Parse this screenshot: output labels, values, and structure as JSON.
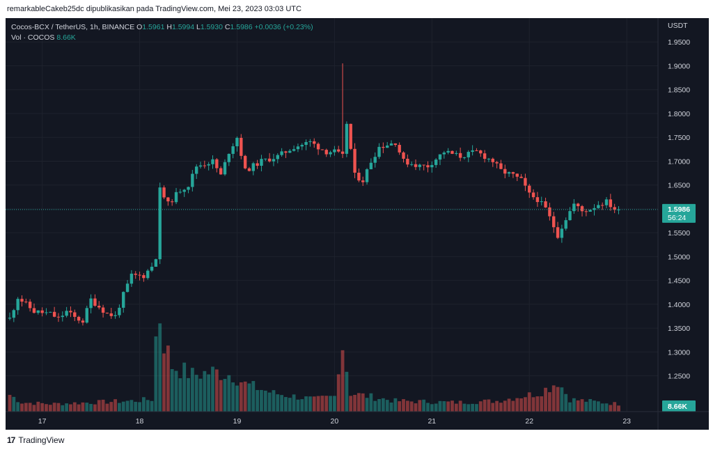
{
  "caption": "remarkableCakeb25dc dipublikasikan pada TradingView.com, Mei 23, 2023 03:03 UTC",
  "legend": {
    "symbol": "Cocos-BCX / TetherUS, 1h, BINANCE",
    "o_label": "O",
    "o_value": "1.5961",
    "h_label": "H",
    "h_value": "1.5994",
    "l_label": "L",
    "l_value": "1.5930",
    "c_label": "C",
    "c_value": "1.5986",
    "change": "+0.0036 (+0.23%)",
    "vol_label": "Vol · COCOS",
    "vol_value": "8.66K"
  },
  "footer": {
    "brand": "TradingView",
    "logo_glyph": "17"
  },
  "colors": {
    "up": "#26a69a",
    "down": "#ef5350",
    "background": "#131722",
    "text": "#d1d4dc",
    "price_line": "#26a69a"
  },
  "chart_data": {
    "type": "candlestick",
    "currency": "USDT",
    "ylim": [
      1.175,
      2.0
    ],
    "y_ticks": [
      "1.9500",
      "1.9000",
      "1.8500",
      "1.8000",
      "1.7500",
      "1.7000",
      "1.6500",
      "1.6000",
      "1.5500",
      "1.5000",
      "1.4500",
      "1.4000",
      "1.3500",
      "1.3000",
      "1.2500"
    ],
    "x_ticks": [
      {
        "label": "17",
        "hour": 8
      },
      {
        "label": "18",
        "hour": 32
      },
      {
        "label": "19",
        "hour": 56
      },
      {
        "label": "20",
        "hour": 80
      },
      {
        "label": "21",
        "hour": 104
      },
      {
        "label": "22",
        "hour": 128
      },
      {
        "label": "23",
        "hour": 152
      }
    ],
    "last_price": "1.5986",
    "countdown": "56:24",
    "last_volume": "8.66K",
    "price_anchors": [
      [
        0,
        1.37
      ],
      [
        2,
        1.415
      ],
      [
        6,
        1.385
      ],
      [
        10,
        1.38
      ],
      [
        12,
        1.37
      ],
      [
        14,
        1.385
      ],
      [
        16,
        1.372
      ],
      [
        18,
        1.365
      ],
      [
        20,
        1.41
      ],
      [
        22,
        1.395
      ],
      [
        24,
        1.38
      ],
      [
        26,
        1.375
      ],
      [
        28,
        1.42
      ],
      [
        30,
        1.46
      ],
      [
        33,
        1.46
      ],
      [
        35,
        1.48
      ],
      [
        36,
        1.5
      ],
      [
        37,
        1.64
      ],
      [
        39,
        1.61
      ],
      [
        42,
        1.64
      ],
      [
        44,
        1.65
      ],
      [
        46,
        1.69
      ],
      [
        50,
        1.7
      ],
      [
        52,
        1.67
      ],
      [
        54,
        1.72
      ],
      [
        56,
        1.75
      ],
      [
        58,
        1.68
      ],
      [
        62,
        1.7
      ],
      [
        66,
        1.71
      ],
      [
        70,
        1.73
      ],
      [
        74,
        1.74
      ],
      [
        78,
        1.72
      ],
      [
        80,
        1.72
      ],
      [
        82,
        1.71
      ],
      [
        83,
        1.78
      ],
      [
        85,
        1.67
      ],
      [
        87,
        1.66
      ],
      [
        89,
        1.7
      ],
      [
        91,
        1.73
      ],
      [
        95,
        1.74
      ],
      [
        97,
        1.7
      ],
      [
        101,
        1.69
      ],
      [
        103,
        1.69
      ],
      [
        107,
        1.72
      ],
      [
        111,
        1.71
      ],
      [
        115,
        1.72
      ],
      [
        119,
        1.7
      ],
      [
        121,
        1.68
      ],
      [
        124,
        1.67
      ],
      [
        126,
        1.66
      ],
      [
        128,
        1.63
      ],
      [
        130,
        1.62
      ],
      [
        132,
        1.6
      ],
      [
        135,
        1.545
      ],
      [
        137,
        1.58
      ],
      [
        139,
        1.61
      ],
      [
        141,
        1.595
      ],
      [
        143,
        1.6
      ],
      [
        145,
        1.61
      ],
      [
        147,
        1.615
      ],
      [
        149,
        1.6
      ],
      [
        150,
        1.5986
      ]
    ],
    "volume_anchors": [
      [
        0,
        0.55
      ],
      [
        3,
        0.3
      ],
      [
        10,
        0.25
      ],
      [
        20,
        0.3
      ],
      [
        30,
        0.35
      ],
      [
        35,
        0.4
      ],
      [
        36,
        2.4
      ],
      [
        37,
        3.15
      ],
      [
        38,
        2.3
      ],
      [
        40,
        1.5
      ],
      [
        45,
        1.2
      ],
      [
        50,
        1.3
      ],
      [
        55,
        1.2
      ],
      [
        58,
        0.9
      ],
      [
        65,
        0.6
      ],
      [
        75,
        0.4
      ],
      [
        80,
        0.5
      ],
      [
        81,
        1.6
      ],
      [
        82,
        2.2
      ],
      [
        84,
        0.6
      ],
      [
        95,
        0.35
      ],
      [
        110,
        0.3
      ],
      [
        120,
        0.35
      ],
      [
        130,
        0.6
      ],
      [
        133,
        0.8
      ],
      [
        135,
        1.0
      ],
      [
        138,
        0.4
      ],
      [
        150,
        0.25
      ]
    ],
    "volume_max": 3.3
  }
}
